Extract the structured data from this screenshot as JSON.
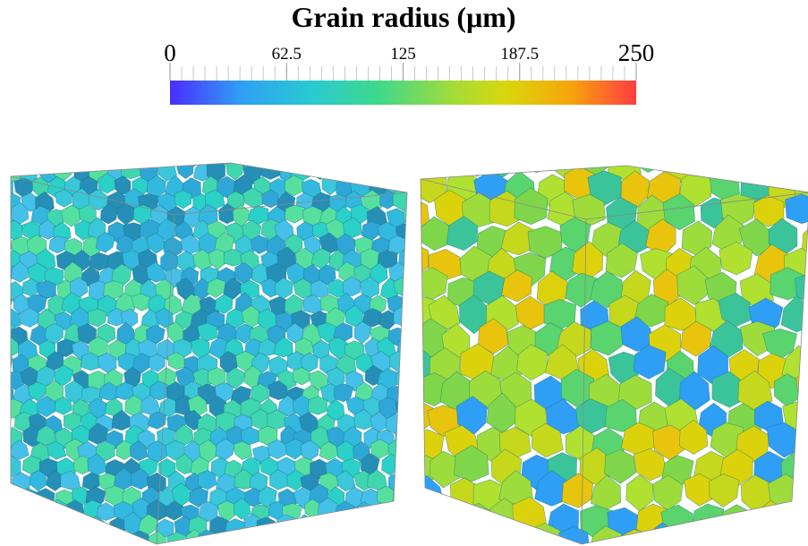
{
  "colorbar": {
    "title": "Grain radius (μm)",
    "range": [
      0,
      250
    ],
    "ticks": [
      0,
      62.5,
      125,
      187.5,
      250
    ]
  }
}
